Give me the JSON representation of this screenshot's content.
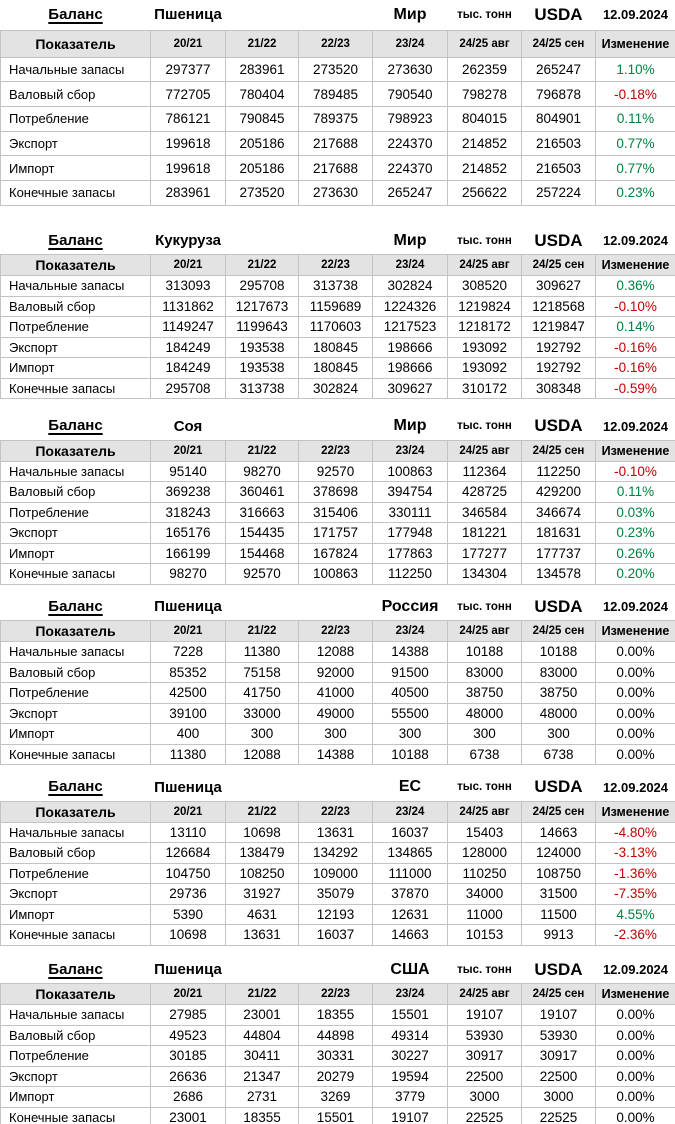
{
  "meta": {
    "balance_label": "Баланс",
    "indicator_label": "Показатель",
    "change_label": "Изменение",
    "unit_label": "тыс. тонн",
    "source_label": "USDA",
    "date": "12.09.2024"
  },
  "columns": [
    "20/21",
    "21/22",
    "22/23",
    "23/24",
    "24/25 авг",
    "24/25 сен"
  ],
  "row_labels": [
    "Начальные запасы",
    "Валовый сбор",
    "Потребление",
    "Экспорт",
    "Импорт",
    "Конечные запасы"
  ],
  "colors": {
    "positive": "#008040",
    "negative": "#c00000",
    "neutral": "#000000"
  },
  "tables": [
    {
      "commodity": "Пшеница",
      "region": "Мир",
      "rows": [
        {
          "values": [
            297377,
            283961,
            273520,
            273630,
            262359,
            265247
          ],
          "change": "1.10%",
          "trend": "positive"
        },
        {
          "values": [
            772705,
            780404,
            789485,
            790540,
            798278,
            796878
          ],
          "change": "-0.18%",
          "trend": "negative"
        },
        {
          "values": [
            786121,
            790845,
            789375,
            798923,
            804015,
            804901
          ],
          "change": "0.11%",
          "trend": "positive"
        },
        {
          "values": [
            199618,
            205186,
            217688,
            224370,
            214852,
            216503
          ],
          "change": "0.77%",
          "trend": "positive"
        },
        {
          "values": [
            199618,
            205186,
            217688,
            224370,
            214852,
            216503
          ],
          "change": "0.77%",
          "trend": "positive"
        },
        {
          "values": [
            283961,
            273520,
            273630,
            265247,
            256622,
            257224
          ],
          "change": "0.23%",
          "trend": "positive"
        }
      ]
    },
    {
      "commodity": "Кукуруза",
      "region": "Мир",
      "rows": [
        {
          "values": [
            313093,
            295708,
            313738,
            302824,
            308520,
            309627
          ],
          "change": "0.36%",
          "trend": "positive"
        },
        {
          "values": [
            1131862,
            1217673,
            1159689,
            1224326,
            1219824,
            1218568
          ],
          "change": "-0.10%",
          "trend": "negative"
        },
        {
          "values": [
            1149247,
            1199643,
            1170603,
            1217523,
            1218172,
            1219847
          ],
          "change": "0.14%",
          "trend": "positive"
        },
        {
          "values": [
            184249,
            193538,
            180845,
            198666,
            193092,
            192792
          ],
          "change": "-0.16%",
          "trend": "negative"
        },
        {
          "values": [
            184249,
            193538,
            180845,
            198666,
            193092,
            192792
          ],
          "change": "-0.16%",
          "trend": "negative"
        },
        {
          "values": [
            295708,
            313738,
            302824,
            309627,
            310172,
            308348
          ],
          "change": "-0.59%",
          "trend": "negative"
        }
      ]
    },
    {
      "commodity": "Соя",
      "region": "Мир",
      "rows": [
        {
          "values": [
            95140,
            98270,
            92570,
            100863,
            112364,
            112250
          ],
          "change": "-0.10%",
          "trend": "negative"
        },
        {
          "values": [
            369238,
            360461,
            378698,
            394754,
            428725,
            429200
          ],
          "change": "0.11%",
          "trend": "positive"
        },
        {
          "values": [
            318243,
            316663,
            315406,
            330111,
            346584,
            346674
          ],
          "change": "0.03%",
          "trend": "positive"
        },
        {
          "values": [
            165176,
            154435,
            171757,
            177948,
            181221,
            181631
          ],
          "change": "0.23%",
          "trend": "positive"
        },
        {
          "values": [
            166199,
            154468,
            167824,
            177863,
            177277,
            177737
          ],
          "change": "0.26%",
          "trend": "positive"
        },
        {
          "values": [
            98270,
            92570,
            100863,
            112250,
            134304,
            134578
          ],
          "change": "0.20%",
          "trend": "positive"
        }
      ]
    },
    {
      "commodity": "Пшеница",
      "region": "Россия",
      "rows": [
        {
          "values": [
            7228,
            11380,
            12088,
            14388,
            10188,
            10188
          ],
          "change": "0.00%",
          "trend": "neutral"
        },
        {
          "values": [
            85352,
            75158,
            92000,
            91500,
            83000,
            83000
          ],
          "change": "0.00%",
          "trend": "neutral"
        },
        {
          "values": [
            42500,
            41750,
            41000,
            40500,
            38750,
            38750
          ],
          "change": "0.00%",
          "trend": "neutral"
        },
        {
          "values": [
            39100,
            33000,
            49000,
            55500,
            48000,
            48000
          ],
          "change": "0.00%",
          "trend": "neutral"
        },
        {
          "values": [
            400,
            300,
            300,
            300,
            300,
            300
          ],
          "change": "0.00%",
          "trend": "neutral"
        },
        {
          "values": [
            11380,
            12088,
            14388,
            10188,
            6738,
            6738
          ],
          "change": "0.00%",
          "trend": "neutral"
        }
      ]
    },
    {
      "commodity": "Пшеница",
      "region": "ЕС",
      "rows": [
        {
          "values": [
            13110,
            10698,
            13631,
            16037,
            15403,
            14663
          ],
          "change": "-4.80%",
          "trend": "negative"
        },
        {
          "values": [
            126684,
            138479,
            134292,
            134865,
            128000,
            124000
          ],
          "change": "-3.13%",
          "trend": "negative"
        },
        {
          "values": [
            104750,
            108250,
            109000,
            111000,
            110250,
            108750
          ],
          "change": "-1.36%",
          "trend": "negative"
        },
        {
          "values": [
            29736,
            31927,
            35079,
            37870,
            34000,
            31500
          ],
          "change": "-7.35%",
          "trend": "negative"
        },
        {
          "values": [
            5390,
            4631,
            12193,
            12631,
            11000,
            11500
          ],
          "change": "4.55%",
          "trend": "positive"
        },
        {
          "values": [
            10698,
            13631,
            16037,
            14663,
            10153,
            9913
          ],
          "change": "-2.36%",
          "trend": "negative"
        }
      ]
    },
    {
      "commodity": "Пшеница",
      "region": "США",
      "rows": [
        {
          "values": [
            27985,
            23001,
            18355,
            15501,
            19107,
            19107
          ],
          "change": "0.00%",
          "trend": "neutral"
        },
        {
          "values": [
            49523,
            44804,
            44898,
            49314,
            53930,
            53930
          ],
          "change": "0.00%",
          "trend": "neutral"
        },
        {
          "values": [
            30185,
            30411,
            30331,
            30227,
            30917,
            30917
          ],
          "change": "0.00%",
          "trend": "neutral"
        },
        {
          "values": [
            26636,
            21347,
            20279,
            19594,
            22500,
            22500
          ],
          "change": "0.00%",
          "trend": "neutral"
        },
        {
          "values": [
            2686,
            2731,
            3269,
            3779,
            3000,
            3000
          ],
          "change": "0.00%",
          "trend": "neutral"
        },
        {
          "values": [
            23001,
            18355,
            15501,
            19107,
            22525,
            22525
          ],
          "change": "0.00%",
          "trend": "neutral"
        }
      ]
    }
  ]
}
